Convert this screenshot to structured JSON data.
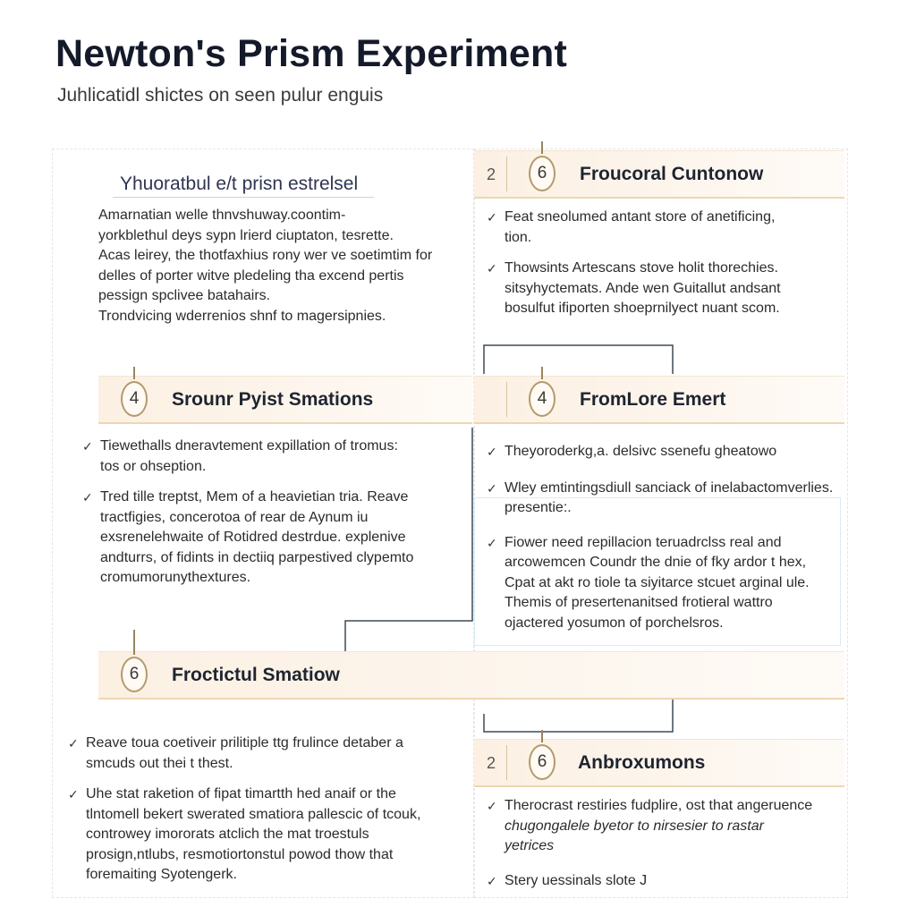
{
  "header": {
    "title": "Newton's Prism Experiment",
    "subtitle": "Juhlicatidl shictes on seen pulur enguis"
  },
  "intro_card": {
    "title": "Yhuoratbul e/t prisn estrelsel",
    "lines": [
      "Amarnatian welle thnvshuway.coontim-",
      "yorkblethul deys sypn lrierd ciuptaton, tesrette.",
      "Acas leirey, the thotfaxhius rony wer ve soetimtim for",
      "delles of porter witve pledeling tha excend pertis",
      "pessign spclivee batahairs.",
      "Trondvicing wderrenios shnf to magersipnies."
    ]
  },
  "sections": [
    {
      "badge": "6",
      "num": "2",
      "title": "Froucoral Cuntonow",
      "items": [
        [
          "Feat sneolumed antant store of anetificing,",
          "tion."
        ],
        [
          "Thowsints Artescans stove holit thorechies.",
          "sitsyhyctemats. Ande wen Guitallut andsant",
          "bosulfut ifiporten shoeprnilyect nuant scom."
        ]
      ]
    },
    {
      "badge": "4",
      "title": "Srounr Pyist Smations",
      "items": [
        [
          "Tiewethalls dneravtement expillation of tromus:",
          "tos or ohseption."
        ],
        [
          "Tred tille treptst, Mem of a heavietian tria. Reave",
          "tractfigies, concerotoa of rear de Aynum iu",
          "exsrenelehwaite of Rotidred destrdue. explenive",
          "andturrs, of fidints in dectiiq parpestived clypemto",
          "cromumorunythextures."
        ]
      ]
    },
    {
      "badge": "4",
      "title": "FromLore Emert",
      "items": [
        [
          "Theyoroderkg,a. delsivc ssenefu gheatowo"
        ],
        [
          "Wley emtintingsdiull sanciack of inelabactomverlies.",
          "presentie:."
        ],
        [
          "Fiower need repillacion teruadrclss real and",
          "arcowemcen Coundr the dnie of fky ardor t hex,",
          "Cpat at akt ro tiole ta siyitarce stcuet arginal ule.",
          "Themis of presertenanitsed frotieral wattro",
          "ojactered yosumon of porchelsros."
        ]
      ]
    },
    {
      "badge": "6",
      "title": "Froctictul Smatiow",
      "items": [
        [
          "Reave toua coetiveir prilitiple ttg frulince detaber a",
          "smcuds out thei t thest."
        ],
        [
          "Uhe stat raketion of fipat timartth hed anaif or the",
          "tlntomell bekert swerated smatiora pallescic of tcouk,",
          "controwey imororats atclich the mat troestuls",
          "prosign,ntlubs, resmotiortonstul powod thow that",
          "foremaiting Syotengerk."
        ]
      ]
    },
    {
      "badge": "6",
      "num": "2",
      "title": "Anbroxumons",
      "items": [
        [
          "Therocrast restiries fudplire, ost that angeruence",
          "chugongalele byetor to nirsesier to rastar",
          "yetrices"
        ],
        [
          "Stery uessinals slote J"
        ]
      ]
    }
  ],
  "colors": {
    "accent_gold": "#b49a6e",
    "bar_tint": "#fbf0e2",
    "connector": "#3f4a57"
  },
  "icons": {
    "check": "check-icon",
    "badge": "step-badge-icon"
  }
}
